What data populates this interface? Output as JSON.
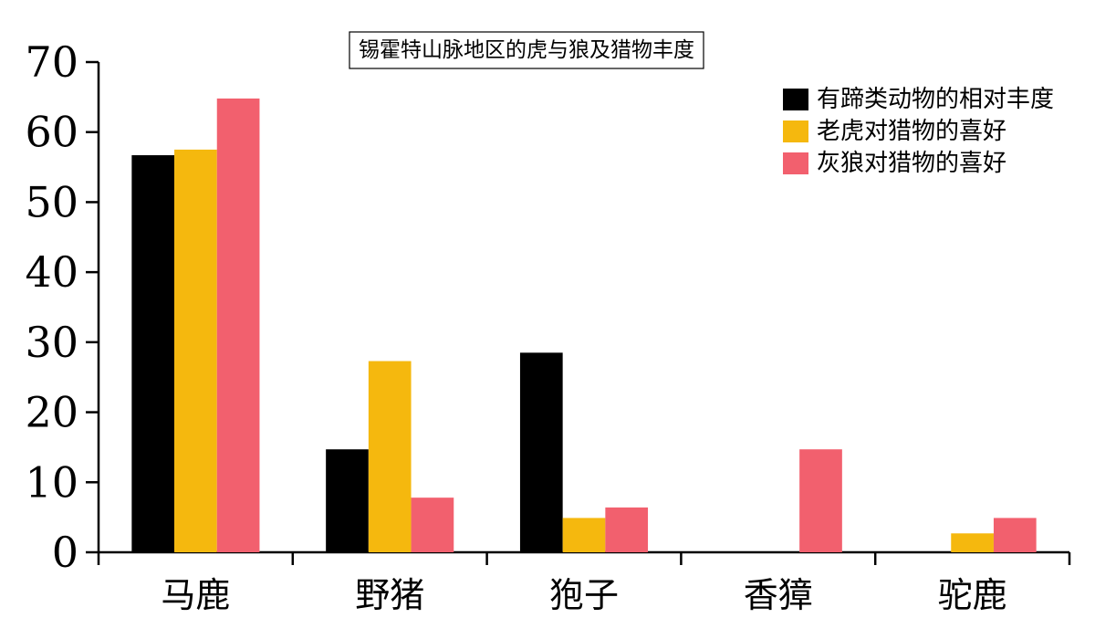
{
  "chart_data": {
    "type": "bar",
    "title": "锡霍特山脉地区的虎与狼及猎物丰度",
    "xlabel": "",
    "ylabel": "",
    "categories": [
      "马鹿",
      "野猪",
      "狍子",
      "香獐",
      "驼鹿"
    ],
    "ylim": [
      0,
      70
    ],
    "yticks": [
      0,
      10,
      20,
      30,
      40,
      50,
      60,
      70
    ],
    "grid": false,
    "legend_position": "top-right",
    "series": [
      {
        "name": "有蹄类动物的相对丰度",
        "color": "#000000",
        "values": [
          56.7,
          14.7,
          28.5,
          0,
          0
        ]
      },
      {
        "name": "老虎对猎物的喜好",
        "color": "#F5B80E",
        "values": [
          57.5,
          27.3,
          4.9,
          0,
          2.7
        ]
      },
      {
        "name": "灰狼对猎物的喜好",
        "color": "#F2606E",
        "values": [
          64.8,
          7.8,
          6.4,
          14.7,
          4.9
        ]
      }
    ]
  }
}
